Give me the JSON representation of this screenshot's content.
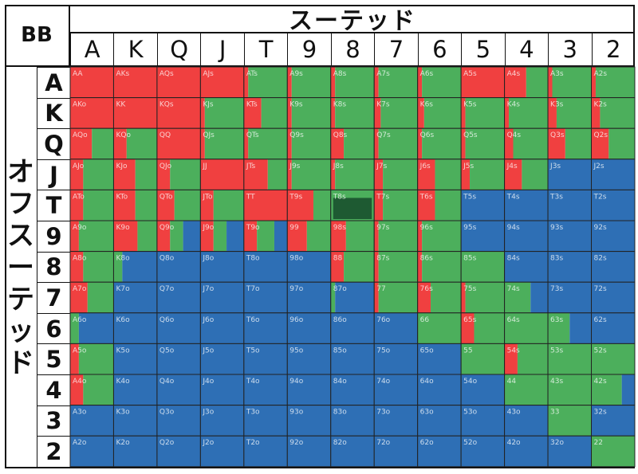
{
  "corner_label": "BB",
  "suited_title": "スーテッド",
  "offsuit_title": "オフスーテッド",
  "ranks": [
    "A",
    "K",
    "Q",
    "J",
    "T",
    "9",
    "8",
    "7",
    "6",
    "5",
    "4",
    "3",
    "2"
  ],
  "colors": {
    "raise": "#f04040",
    "call": "#4caf5c",
    "fold": "#2e6fb5",
    "highlight": "#1e5a32",
    "grid": "#222222"
  },
  "chart_data": {
    "type": "heatmap",
    "legend": "none",
    "rows": [
      "A",
      "K",
      "Q",
      "J",
      "T",
      "9",
      "8",
      "7",
      "6",
      "5",
      "4",
      "3",
      "2"
    ],
    "cols": [
      "A",
      "K",
      "Q",
      "J",
      "T",
      "9",
      "8",
      "7",
      "6",
      "5",
      "4",
      "3",
      "2"
    ],
    "frequency_order": [
      "raise",
      "call",
      "fold"
    ],
    "hands": [
      [
        "AA",
        "AKs",
        "AQs",
        "AJs",
        "ATs",
        "A9s",
        "A8s",
        "A7s",
        "A6s",
        "A5s",
        "A4s",
        "A3s",
        "A2s"
      ],
      [
        "AKo",
        "KK",
        "KQs",
        "KJs",
        "KTs",
        "K9s",
        "K8s",
        "K7s",
        "K6s",
        "K5s",
        "K4s",
        "K3s",
        "K2s"
      ],
      [
        "AQo",
        "KQo",
        "QQ",
        "QJs",
        "QTs",
        "Q9s",
        "Q8s",
        "Q7s",
        "Q6s",
        "Q5s",
        "Q4s",
        "Q3s",
        "Q2s"
      ],
      [
        "AJo",
        "KJo",
        "QJo",
        "JJ",
        "JTs",
        "J9s",
        "J8s",
        "J7s",
        "J6s",
        "J5s",
        "J4s",
        "J3s",
        "J2s"
      ],
      [
        "ATo",
        "KTo",
        "QTo",
        "JTo",
        "TT",
        "T9s",
        "T8s",
        "T7s",
        "T6s",
        "T5s",
        "T4s",
        "T3s",
        "T2s"
      ],
      [
        "A9o",
        "K9o",
        "Q9o",
        "J9o",
        "T9o",
        "99",
        "98s",
        "97s",
        "96s",
        "95s",
        "94s",
        "93s",
        "92s"
      ],
      [
        "A8o",
        "K8o",
        "Q8o",
        "J8o",
        "T8o",
        "98o",
        "88",
        "87s",
        "86s",
        "85s",
        "84s",
        "83s",
        "82s"
      ],
      [
        "A7o",
        "K7o",
        "Q7o",
        "J7o",
        "T7o",
        "97o",
        "87o",
        "77",
        "76s",
        "75s",
        "74s",
        "73s",
        "72s"
      ],
      [
        "A6o",
        "K6o",
        "Q6o",
        "J6o",
        "T6o",
        "96o",
        "86o",
        "76o",
        "66",
        "65s",
        "64s",
        "63s",
        "62s"
      ],
      [
        "A5o",
        "K5o",
        "Q5o",
        "J5o",
        "T5o",
        "95o",
        "85o",
        "75o",
        "65o",
        "55",
        "54s",
        "53s",
        "52s"
      ],
      [
        "A4o",
        "K4o",
        "Q4o",
        "J4o",
        "T4o",
        "94o",
        "84o",
        "74o",
        "64o",
        "54o",
        "44",
        "43s",
        "42s"
      ],
      [
        "A3o",
        "K3o",
        "Q3o",
        "J3o",
        "T3o",
        "93o",
        "83o",
        "73o",
        "63o",
        "53o",
        "43o",
        "33",
        "32s"
      ],
      [
        "A2o",
        "K2o",
        "Q2o",
        "J2o",
        "T2o",
        "92o",
        "82o",
        "72o",
        "62o",
        "52o",
        "42o",
        "32o",
        "22"
      ]
    ],
    "frequencies": [
      [
        [
          1,
          0,
          0
        ],
        [
          1,
          0,
          0
        ],
        [
          1,
          0,
          0
        ],
        [
          1,
          0,
          0
        ],
        [
          0.1,
          0.9,
          0
        ],
        [
          0.1,
          0.9,
          0
        ],
        [
          0.1,
          0.9,
          0
        ],
        [
          0.1,
          0.9,
          0
        ],
        [
          0.1,
          0.9,
          0
        ],
        [
          1,
          0,
          0
        ],
        [
          0.5,
          0.5,
          0
        ],
        [
          0.1,
          0.9,
          0
        ],
        [
          0.1,
          0.9,
          0
        ]
      ],
      [
        [
          1,
          0,
          0
        ],
        [
          1,
          0,
          0
        ],
        [
          1,
          0,
          0
        ],
        [
          0.1,
          0.9,
          0
        ],
        [
          0.4,
          0.6,
          0
        ],
        [
          0.1,
          0.9,
          0
        ],
        [
          0.1,
          0.9,
          0
        ],
        [
          0.15,
          0.85,
          0
        ],
        [
          0.15,
          0.85,
          0
        ],
        [
          0.1,
          0.9,
          0
        ],
        [
          0.1,
          0.9,
          0
        ],
        [
          0.2,
          0.8,
          0
        ],
        [
          0.2,
          0.8,
          0
        ]
      ],
      [
        [
          0.5,
          0.5,
          0
        ],
        [
          0.3,
          0.7,
          0
        ],
        [
          1,
          0,
          0
        ],
        [
          0.1,
          0.9,
          0
        ],
        [
          0.1,
          0.9,
          0
        ],
        [
          0.1,
          0.9,
          0
        ],
        [
          0.3,
          0.7,
          0
        ],
        [
          0.1,
          0.9,
          0
        ],
        [
          0.1,
          0.9,
          0
        ],
        [
          0.1,
          0.9,
          0
        ],
        [
          0.2,
          0.8,
          0
        ],
        [
          0.4,
          0.6,
          0
        ],
        [
          0.4,
          0.6,
          0
        ]
      ],
      [
        [
          0.3,
          0.7,
          0
        ],
        [
          0.5,
          0.5,
          0
        ],
        [
          0.3,
          0.7,
          0
        ],
        [
          1,
          0,
          0
        ],
        [
          0.55,
          0.45,
          0
        ],
        [
          0.1,
          0.9,
          0
        ],
        [
          0.1,
          0.9,
          0
        ],
        [
          0.2,
          0.8,
          0
        ],
        [
          0.4,
          0.6,
          0
        ],
        [
          0.2,
          0.8,
          0
        ],
        [
          0.4,
          0.6,
          0
        ],
        [
          0,
          0,
          1
        ],
        [
          0,
          0,
          1
        ]
      ],
      [
        [
          0.3,
          0.7,
          0
        ],
        [
          0.5,
          0.5,
          0
        ],
        [
          0.4,
          0.6,
          0
        ],
        [
          0.3,
          0.7,
          0
        ],
        [
          1,
          0,
          0
        ],
        [
          0.6,
          0.4,
          0
        ],
        [
          0,
          1,
          0
        ],
        [
          0.2,
          0.8,
          0
        ],
        [
          0.4,
          0.6,
          0
        ],
        [
          0,
          0,
          1
        ],
        [
          0,
          0,
          1
        ],
        [
          0,
          0,
          1
        ],
        [
          0,
          0,
          1
        ]
      ],
      [
        [
          0.2,
          0.8,
          0
        ],
        [
          0.55,
          0.45,
          0
        ],
        [
          0.3,
          0.3,
          0.4
        ],
        [
          0.3,
          0.3,
          0.4
        ],
        [
          0.3,
          0.4,
          0.3
        ],
        [
          0.45,
          0.55,
          0
        ],
        [
          0.35,
          0.65,
          0
        ],
        [
          0.1,
          0.9,
          0
        ],
        [
          0.1,
          0.9,
          0
        ],
        [
          0,
          0,
          1
        ],
        [
          0,
          0,
          1
        ],
        [
          0,
          0,
          1
        ],
        [
          0,
          0,
          1
        ]
      ],
      [
        [
          0.3,
          0.7,
          0
        ],
        [
          0,
          0.2,
          0.8
        ],
        [
          0,
          0,
          1
        ],
        [
          0,
          0,
          1
        ],
        [
          0,
          0,
          1
        ],
        [
          0,
          0,
          1
        ],
        [
          0.3,
          0.7,
          0
        ],
        [
          0.1,
          0.9,
          0
        ],
        [
          0.1,
          0.9,
          0
        ],
        [
          0,
          1,
          0
        ],
        [
          0,
          0,
          1
        ],
        [
          0,
          0,
          1
        ],
        [
          0,
          0,
          1
        ]
      ],
      [
        [
          0.4,
          0.6,
          0
        ],
        [
          0,
          0,
          1
        ],
        [
          0,
          0,
          1
        ],
        [
          0,
          0,
          1
        ],
        [
          0,
          0,
          1
        ],
        [
          0,
          0,
          1
        ],
        [
          0,
          0.1,
          0.9
        ],
        [
          0.1,
          0.9,
          0
        ],
        [
          0.3,
          0.7,
          0
        ],
        [
          0.1,
          0.9,
          0
        ],
        [
          0,
          0.6,
          0.4
        ],
        [
          0,
          0,
          1
        ],
        [
          0,
          0,
          1
        ]
      ],
      [
        [
          0,
          0.2,
          0.8
        ],
        [
          0,
          0,
          1
        ],
        [
          0,
          0,
          1
        ],
        [
          0,
          0,
          1
        ],
        [
          0,
          0,
          1
        ],
        [
          0,
          0,
          1
        ],
        [
          0,
          0,
          1
        ],
        [
          0,
          0,
          1
        ],
        [
          0,
          1,
          0
        ],
        [
          0.3,
          0.7,
          0
        ],
        [
          0,
          1,
          0
        ],
        [
          0,
          0.5,
          0.5
        ],
        [
          0,
          0,
          1
        ]
      ],
      [
        [
          0.2,
          0.8,
          0
        ],
        [
          0,
          0,
          1
        ],
        [
          0,
          0,
          1
        ],
        [
          0,
          0,
          1
        ],
        [
          0,
          0,
          1
        ],
        [
          0,
          0,
          1
        ],
        [
          0,
          0,
          1
        ],
        [
          0,
          0,
          1
        ],
        [
          0,
          0,
          1
        ],
        [
          0,
          1,
          0
        ],
        [
          0.3,
          0.7,
          0
        ],
        [
          0,
          1,
          0
        ],
        [
          0,
          1,
          0
        ]
      ],
      [
        [
          0.3,
          0.7,
          0
        ],
        [
          0,
          0,
          1
        ],
        [
          0,
          0,
          1
        ],
        [
          0,
          0,
          1
        ],
        [
          0,
          0,
          1
        ],
        [
          0,
          0,
          1
        ],
        [
          0,
          0,
          1
        ],
        [
          0,
          0,
          1
        ],
        [
          0,
          0,
          1
        ],
        [
          0,
          0,
          1
        ],
        [
          0,
          1,
          0
        ],
        [
          0,
          1,
          0
        ],
        [
          0,
          0.7,
          0.3
        ]
      ],
      [
        [
          0,
          0,
          1
        ],
        [
          0,
          0,
          1
        ],
        [
          0,
          0,
          1
        ],
        [
          0,
          0,
          1
        ],
        [
          0,
          0,
          1
        ],
        [
          0,
          0,
          1
        ],
        [
          0,
          0,
          1
        ],
        [
          0,
          0,
          1
        ],
        [
          0,
          0,
          1
        ],
        [
          0,
          0,
          1
        ],
        [
          0,
          0,
          1
        ],
        [
          0,
          1,
          0
        ],
        [
          0,
          0,
          1
        ]
      ],
      [
        [
          0,
          0,
          1
        ],
        [
          0,
          0,
          1
        ],
        [
          0,
          0,
          1
        ],
        [
          0,
          0,
          1
        ],
        [
          0,
          0,
          1
        ],
        [
          0,
          0,
          1
        ],
        [
          0,
          0,
          1
        ],
        [
          0,
          0,
          1
        ],
        [
          0,
          0,
          1
        ],
        [
          0,
          0,
          1
        ],
        [
          0,
          0,
          1
        ],
        [
          0,
          0,
          1
        ],
        [
          0,
          1,
          0
        ]
      ]
    ],
    "highlight_cells": [
      "T8s"
    ]
  }
}
